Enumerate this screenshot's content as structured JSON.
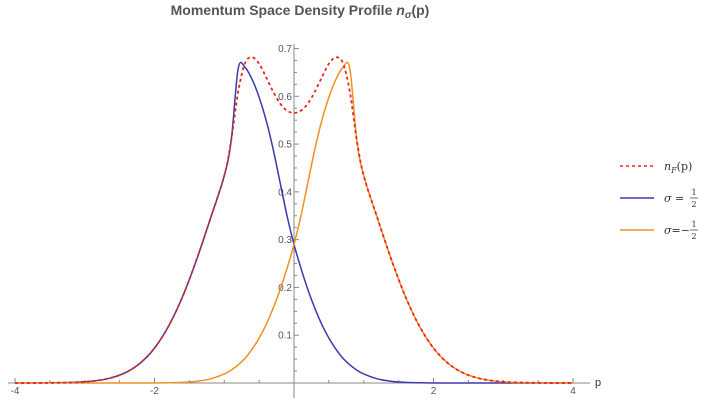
{
  "chart_data": {
    "type": "line",
    "title_main": "Momentum Space Density Profile ",
    "title_symbol": "n",
    "title_subscript": "σ",
    "title_arg": "(p)",
    "xlabel": "p",
    "ylabel": "",
    "xlim": [
      -4,
      4
    ],
    "ylim": [
      0,
      0.72
    ],
    "grid": false,
    "legend_placement": "right",
    "x_ticks": [
      -4,
      -2,
      2,
      4
    ],
    "y_ticks": [
      0.1,
      0.2,
      0.3,
      0.4,
      0.5,
      0.6,
      0.7
    ],
    "series": [
      {
        "key": "nF",
        "label_symbol": "n",
        "label_subscript": "F",
        "label_arg": "(p)",
        "color": "#e8231a",
        "dash": "dashed",
        "points": [
          [
            -4.0,
            0.0
          ],
          [
            -3.6,
            0.0002
          ],
          [
            -3.2,
            0.0011
          ],
          [
            -3.0,
            0.0025
          ],
          [
            -2.8,
            0.0056
          ],
          [
            -2.6,
            0.0117
          ],
          [
            -2.4,
            0.0229
          ],
          [
            -2.2,
            0.0422
          ],
          [
            -2.0,
            0.073
          ],
          [
            -1.8,
            0.1184
          ],
          [
            -1.6,
            0.18
          ],
          [
            -1.4,
            0.2567
          ],
          [
            -1.2,
            0.3434
          ],
          [
            -1.0,
            0.4336
          ],
          [
            -0.9,
            0.5081
          ],
          [
            -0.8,
            0.61
          ],
          [
            -0.7,
            0.67
          ],
          [
            -0.6,
            0.6815
          ],
          [
            -0.5,
            0.668
          ],
          [
            -0.4,
            0.64
          ],
          [
            -0.3,
            0.61
          ],
          [
            -0.2,
            0.585
          ],
          [
            -0.1,
            0.57
          ],
          [
            0.0,
            0.565
          ],
          [
            0.1,
            0.57
          ],
          [
            0.2,
            0.585
          ],
          [
            0.3,
            0.61
          ],
          [
            0.4,
            0.64
          ],
          [
            0.5,
            0.668
          ],
          [
            0.6,
            0.6815
          ],
          [
            0.7,
            0.67
          ],
          [
            0.8,
            0.61
          ],
          [
            0.9,
            0.5081
          ],
          [
            1.0,
            0.4336
          ],
          [
            1.2,
            0.3434
          ],
          [
            1.4,
            0.2567
          ],
          [
            1.6,
            0.18
          ],
          [
            1.8,
            0.1184
          ],
          [
            2.0,
            0.073
          ],
          [
            2.2,
            0.0422
          ],
          [
            2.4,
            0.0229
          ],
          [
            2.6,
            0.0117
          ],
          [
            2.8,
            0.0056
          ],
          [
            3.0,
            0.0025
          ],
          [
            3.2,
            0.0011
          ],
          [
            3.6,
            0.0002
          ],
          [
            4.0,
            0.0
          ]
        ]
      },
      {
        "key": "up",
        "label_symbol": "σ",
        "label_eq": " = ",
        "label_num": "1",
        "label_den": "2",
        "color": "#3a3ab0",
        "dash": "solid",
        "points": [
          [
            -4.0,
            0.0
          ],
          [
            -3.6,
            0.0002
          ],
          [
            -3.2,
            0.0011
          ],
          [
            -3.0,
            0.0025
          ],
          [
            -2.8,
            0.0056
          ],
          [
            -2.6,
            0.0117
          ],
          [
            -2.4,
            0.0229
          ],
          [
            -2.2,
            0.0422
          ],
          [
            -2.0,
            0.073
          ],
          [
            -1.8,
            0.1184
          ],
          [
            -1.6,
            0.18
          ],
          [
            -1.4,
            0.2567
          ],
          [
            -1.2,
            0.3434
          ],
          [
            -1.0,
            0.4336
          ],
          [
            -0.9,
            0.5081
          ],
          [
            -0.8,
            0.6582
          ],
          [
            -0.7,
            0.66
          ],
          [
            -0.6,
            0.635
          ],
          [
            -0.5,
            0.598
          ],
          [
            -0.4,
            0.55
          ],
          [
            -0.3,
            0.49
          ],
          [
            -0.2,
            0.42
          ],
          [
            -0.1,
            0.35
          ],
          [
            0.0,
            0.29
          ],
          [
            0.1,
            0.24
          ],
          [
            0.2,
            0.195
          ],
          [
            0.3,
            0.156
          ],
          [
            0.4,
            0.122
          ],
          [
            0.5,
            0.094
          ],
          [
            0.6,
            0.071
          ],
          [
            0.7,
            0.052
          ],
          [
            0.8,
            0.038
          ],
          [
            0.9,
            0.027
          ],
          [
            1.0,
            0.019
          ],
          [
            1.2,
            0.0085
          ],
          [
            1.4,
            0.0035
          ],
          [
            1.6,
            0.0013
          ],
          [
            1.8,
            0.0005
          ],
          [
            2.0,
            0.0001
          ],
          [
            2.4,
            0.0
          ],
          [
            3.0,
            0.0
          ],
          [
            4.0,
            0.0
          ]
        ]
      },
      {
        "key": "down",
        "label_symbol": "σ",
        "label_eq": "=−",
        "label_num": "1",
        "label_den": "2",
        "color": "#f0901e",
        "dash": "solid",
        "points": [
          [
            -4.0,
            0.0
          ],
          [
            -3.0,
            0.0
          ],
          [
            -2.4,
            0.0
          ],
          [
            -2.0,
            0.0001
          ],
          [
            -1.8,
            0.0005
          ],
          [
            -1.6,
            0.0013
          ],
          [
            -1.4,
            0.0035
          ],
          [
            -1.2,
            0.0085
          ],
          [
            -1.0,
            0.019
          ],
          [
            -0.9,
            0.027
          ],
          [
            -0.8,
            0.038
          ],
          [
            -0.7,
            0.052
          ],
          [
            -0.6,
            0.071
          ],
          [
            -0.5,
            0.094
          ],
          [
            -0.4,
            0.122
          ],
          [
            -0.3,
            0.156
          ],
          [
            -0.2,
            0.195
          ],
          [
            -0.1,
            0.24
          ],
          [
            0.0,
            0.29
          ],
          [
            0.1,
            0.35
          ],
          [
            0.2,
            0.42
          ],
          [
            0.3,
            0.49
          ],
          [
            0.4,
            0.55
          ],
          [
            0.5,
            0.598
          ],
          [
            0.6,
            0.635
          ],
          [
            0.7,
            0.66
          ],
          [
            0.8,
            0.6582
          ],
          [
            0.9,
            0.5081
          ],
          [
            1.0,
            0.4336
          ],
          [
            1.2,
            0.3434
          ],
          [
            1.4,
            0.2567
          ],
          [
            1.6,
            0.18
          ],
          [
            1.8,
            0.1184
          ],
          [
            2.0,
            0.073
          ],
          [
            2.2,
            0.0422
          ],
          [
            2.4,
            0.0229
          ],
          [
            2.6,
            0.0117
          ],
          [
            2.8,
            0.0056
          ],
          [
            3.0,
            0.0025
          ],
          [
            3.2,
            0.0011
          ],
          [
            3.6,
            0.0002
          ],
          [
            4.0,
            0.0
          ]
        ]
      }
    ]
  }
}
